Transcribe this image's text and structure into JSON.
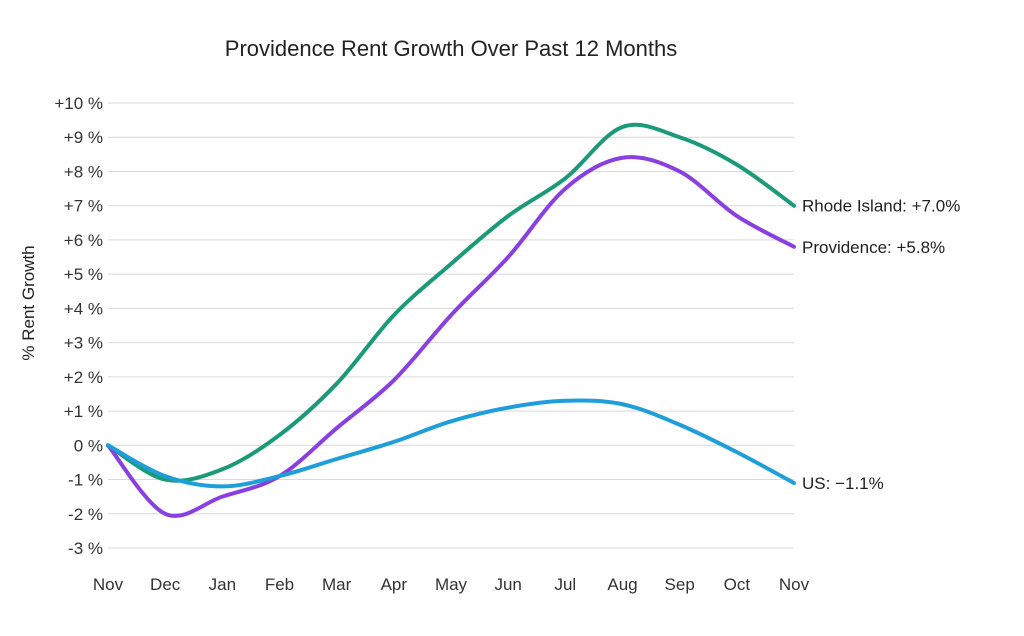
{
  "chart_data": {
    "type": "line",
    "title": "Providence Rent Growth Over Past 12 Months",
    "xlabel": "",
    "ylabel": "% Rent Growth",
    "categories": [
      "Nov",
      "Dec",
      "Jan",
      "Feb",
      "Mar",
      "Apr",
      "May",
      "Jun",
      "Jul",
      "Aug",
      "Sep",
      "Oct",
      "Nov"
    ],
    "ylim": [
      -3,
      10
    ],
    "yticks": [
      {
        "value": 10,
        "label": "+10 %"
      },
      {
        "value": 9,
        "label": "+9 %"
      },
      {
        "value": 8,
        "label": "+8 %"
      },
      {
        "value": 7,
        "label": "+7 %"
      },
      {
        "value": 6,
        "label": "+6 %"
      },
      {
        "value": 5,
        "label": "+5 %"
      },
      {
        "value": 4,
        "label": "+4 %"
      },
      {
        "value": 3,
        "label": "+3 %"
      },
      {
        "value": 2,
        "label": "+2 %"
      },
      {
        "value": 1,
        "label": "+1 %"
      },
      {
        "value": 0,
        "label": "0 %"
      },
      {
        "value": -1,
        "label": "-1 %"
      },
      {
        "value": -2,
        "label": "-2 %"
      },
      {
        "value": -3,
        "label": "-3 %"
      }
    ],
    "grid": true,
    "series": [
      {
        "name": "Rhode Island",
        "color": "#1a9a78",
        "end_label": "Rhode Island: +7.0%",
        "values": [
          0,
          -1.0,
          -0.7,
          0.3,
          1.8,
          3.8,
          5.3,
          6.7,
          7.8,
          9.3,
          9.0,
          8.2,
          7.0
        ]
      },
      {
        "name": "Providence",
        "color": "#8a3fe0",
        "end_label": "Providence: +5.8%",
        "values": [
          0,
          -2.0,
          -1.5,
          -0.9,
          0.5,
          1.9,
          3.8,
          5.5,
          7.5,
          8.4,
          8.0,
          6.7,
          5.8
        ]
      },
      {
        "name": "US",
        "color": "#1e9fdb",
        "end_label": "US: −1.1%",
        "values": [
          0,
          -0.9,
          -1.2,
          -0.9,
          -0.4,
          0.1,
          0.7,
          1.1,
          1.3,
          1.2,
          0.6,
          -0.2,
          -1.1
        ]
      }
    ]
  }
}
